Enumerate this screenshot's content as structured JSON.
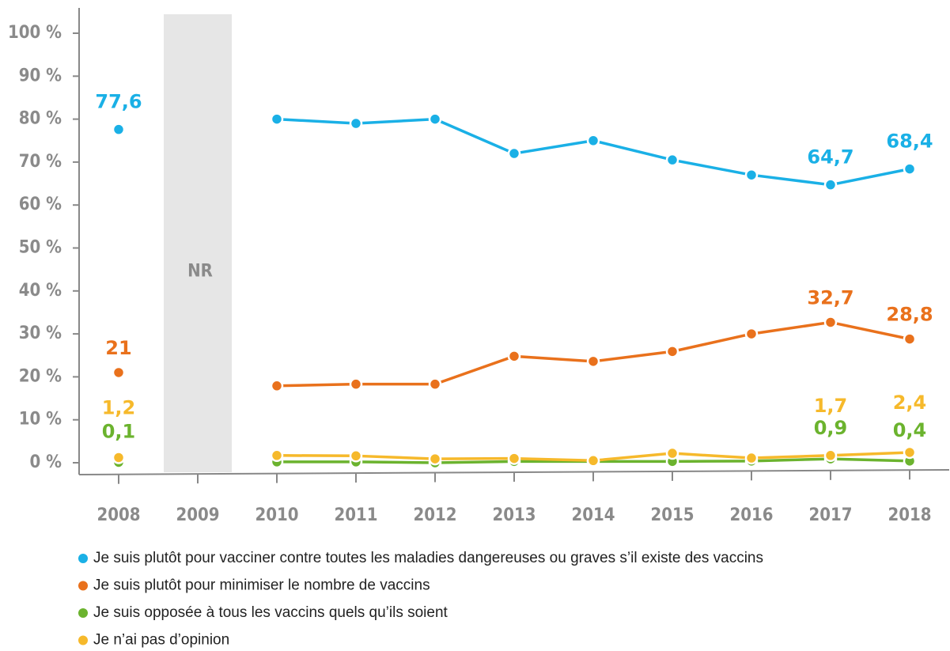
{
  "chart_data": {
    "type": "line",
    "categories": [
      "2008",
      "2009",
      "2010",
      "2011",
      "2012",
      "2013",
      "2014",
      "2015",
      "2016",
      "2017",
      "2018"
    ],
    "series": [
      {
        "name": "Je suis plutôt pour vacciner contre toutes les maladies dangereuses ou graves s’il existe des vaccins",
        "color": "#1ab0e6",
        "values": [
          77.6,
          null,
          80,
          79,
          80,
          72,
          75,
          70.5,
          67,
          64.7,
          68.4
        ],
        "value_labels": [
          "77,6",
          null,
          null,
          null,
          null,
          null,
          null,
          null,
          null,
          "64,7",
          "68,4"
        ]
      },
      {
        "name": "Je suis plutôt pour minimiser le nombre de vaccins",
        "color": "#e9711c",
        "values": [
          21,
          null,
          17.9,
          18.3,
          18.3,
          24.8,
          23.6,
          25.9,
          30,
          32.7,
          28.8
        ],
        "value_labels": [
          "21",
          null,
          null,
          null,
          null,
          null,
          null,
          null,
          null,
          "32,7",
          "28,8"
        ]
      },
      {
        "name": "Je suis opposée à tous les vaccins quels qu’ils soient",
        "color": "#6bb32e",
        "values": [
          0.1,
          null,
          0.2,
          0.2,
          0,
          0.3,
          0.3,
          0.3,
          0.4,
          0.9,
          0.4
        ],
        "value_labels": [
          "0,1",
          null,
          null,
          null,
          null,
          null,
          null,
          null,
          null,
          "0,9",
          "0,4"
        ]
      },
      {
        "name": "Je n’ai pas d’opinion",
        "color": "#f6b92b",
        "values": [
          1.2,
          null,
          1.7,
          1.6,
          0.9,
          1.0,
          0.5,
          2.2,
          1.1,
          1.7,
          2.4
        ],
        "value_labels": [
          "1,2",
          null,
          null,
          null,
          null,
          null,
          null,
          null,
          null,
          "1,7",
          "2,4"
        ]
      }
    ],
    "annotation": "NR",
    "ylim": [
      0,
      100
    ],
    "yticks": [
      {
        "value": 0,
        "label": "0 %"
      },
      {
        "value": 10,
        "label": "10 %"
      },
      {
        "value": 20,
        "label": "20 %"
      },
      {
        "value": 30,
        "label": "30 %"
      },
      {
        "value": 40,
        "label": "40 %"
      },
      {
        "value": 50,
        "label": "50 %"
      },
      {
        "value": 60,
        "label": "60 %"
      },
      {
        "value": 70,
        "label": "70 %"
      },
      {
        "value": 80,
        "label": "80 %"
      },
      {
        "value": 90,
        "label": "90 %"
      },
      {
        "value": 100,
        "label": "100 %"
      }
    ],
    "grid": false
  }
}
